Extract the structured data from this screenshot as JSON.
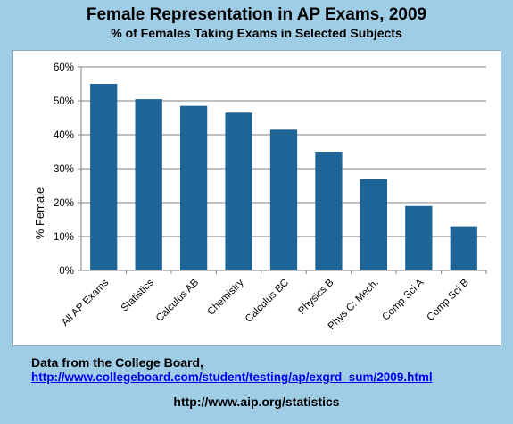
{
  "header": {
    "title": "Female Representation in AP Exams, 2009",
    "subtitle": "% of Females Taking Exams in Selected Subjects"
  },
  "footer": {
    "source_text": "Data from the College Board,",
    "source_url": "http://www.collegeboard.com/student/testing/ap/exgrd_sum/2009.html",
    "site_url": "http://www.aip.org/statistics"
  },
  "colors": {
    "background": "#9fcde6",
    "bar": "#1f6496",
    "grid": "#808080"
  },
  "chart_data": {
    "type": "bar",
    "title": "Female Representation in AP Exams, 2009",
    "subtitle": "% of Females Taking Exams in Selected Subjects",
    "xlabel": "",
    "ylabel": "% Female",
    "ylim": [
      0,
      60
    ],
    "yticks": [
      0,
      10,
      20,
      30,
      40,
      50,
      60
    ],
    "ytick_labels": [
      "0%",
      "10%",
      "20%",
      "30%",
      "40%",
      "50%",
      "60%"
    ],
    "grid": true,
    "categories": [
      "All AP Exams",
      "Statistics",
      "Calculus AB",
      "Chemistry",
      "Calculus BC",
      "Physics B",
      "Phys C: Mech.",
      "Comp Sci A",
      "Comp Sci B"
    ],
    "values": [
      55,
      50.5,
      48.5,
      46.5,
      41.5,
      35,
      27,
      19,
      13
    ]
  }
}
